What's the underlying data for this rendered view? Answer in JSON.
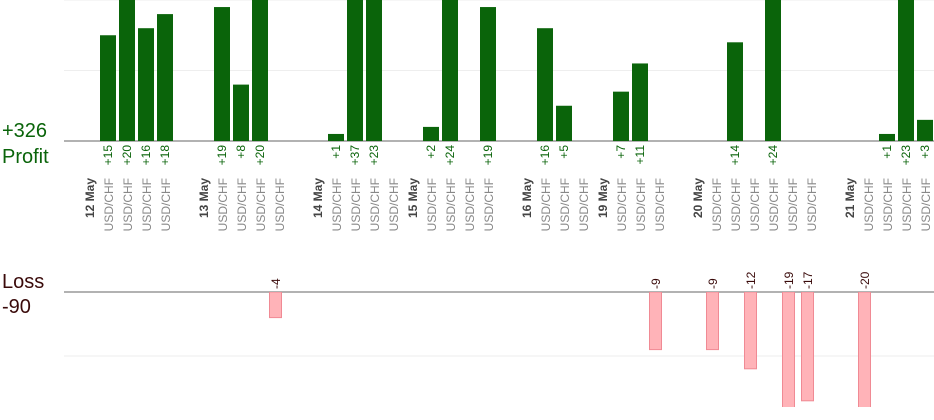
{
  "chart_data": {
    "type": "bar",
    "categories": [
      "12 May",
      "USD/CHF",
      "USD/CHF",
      "USD/CHF",
      "USD/CHF",
      null,
      "13 May",
      "USD/CHF",
      "USD/CHF",
      "USD/CHF",
      "USD/CHF",
      null,
      "14 May",
      "USD/CHF",
      "USD/CHF",
      "USD/CHF",
      "USD/CHF",
      "15 May",
      "USD/CHF",
      "USD/CHF",
      "USD/CHF",
      "USD/CHF",
      null,
      "16 May",
      "USD/CHF",
      "USD/CHF",
      "USD/CHF",
      "19 May",
      "USD/CHF",
      "USD/CHF",
      "USD/CHF",
      null,
      "20 May",
      "USD/CHF",
      "USD/CHF",
      "USD/CHF",
      "USD/CHF",
      "USD/CHF",
      "USD/CHF",
      null,
      "21 May",
      "USD/CHF",
      "USD/CHF",
      "USD/CHF",
      "USD/CHF"
    ],
    "series": [
      {
        "name": "Profit",
        "total": "+326",
        "color": "#0a640a",
        "values": [
          null,
          15,
          20,
          16,
          18,
          null,
          null,
          19,
          8,
          20,
          null,
          null,
          null,
          1,
          37,
          23,
          null,
          null,
          2,
          24,
          null,
          19,
          null,
          null,
          16,
          5,
          null,
          null,
          7,
          11,
          null,
          null,
          null,
          null,
          14,
          null,
          24,
          null,
          null,
          null,
          null,
          null,
          1,
          23,
          3
        ],
        "value_labels": [
          null,
          "+15",
          "+20",
          "+16",
          "+18",
          null,
          null,
          "+19",
          "+8",
          "+20",
          null,
          null,
          null,
          "+1",
          "+37",
          "+23",
          null,
          null,
          "+2",
          "+24",
          null,
          "+19",
          null,
          null,
          "+16",
          "+5",
          null,
          null,
          "+7",
          "+11",
          null,
          null,
          null,
          null,
          "+14",
          null,
          "+24",
          null,
          null,
          null,
          null,
          null,
          "+1",
          "+23",
          "+3"
        ],
        "ylim": [
          0,
          20
        ],
        "yticks": [
          0,
          10,
          20
        ]
      },
      {
        "name": "Loss",
        "total": "-90",
        "color": "#ffb3b8",
        "values": [
          null,
          null,
          null,
          null,
          null,
          null,
          null,
          null,
          null,
          null,
          -4,
          null,
          null,
          null,
          null,
          null,
          null,
          null,
          null,
          null,
          null,
          null,
          null,
          null,
          null,
          null,
          null,
          null,
          null,
          null,
          -9,
          null,
          null,
          -9,
          null,
          -12,
          null,
          -19,
          -17,
          null,
          null,
          -20,
          null,
          null,
          null
        ],
        "ylim": [
          -20,
          0
        ],
        "yticks": [
          0,
          -10
        ]
      }
    ]
  }
}
